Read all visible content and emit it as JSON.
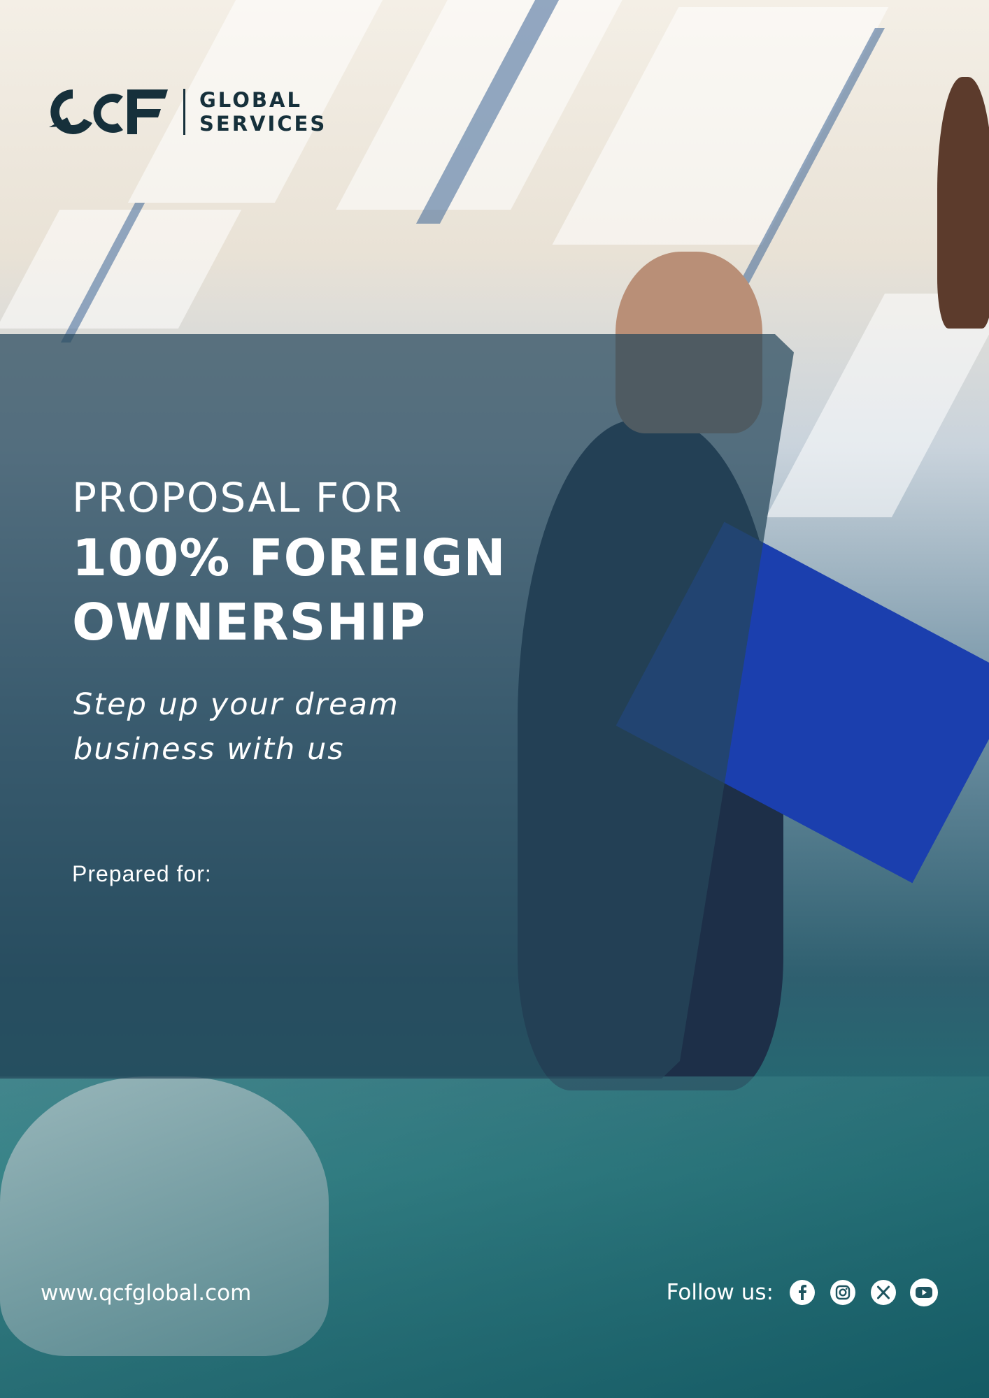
{
  "brand": {
    "logo_mark": "QCF",
    "line1": "GLOBAL",
    "line2": "SERVICES"
  },
  "hero": {
    "kicker": "PROPOSAL FOR",
    "headline_line1": "100% FOREIGN",
    "headline_line2": "OWNERSHIP",
    "tagline_line1": "Step up your dream",
    "tagline_line2": "business with us",
    "prepared_for": "Prepared for:"
  },
  "footer": {
    "website": "www.qcfglobal.com",
    "follow_label": "Follow us:",
    "social_icons": [
      "facebook-icon",
      "instagram-icon",
      "x-icon",
      "youtube-icon"
    ]
  },
  "colors": {
    "panel": "#26465a",
    "logo_dark": "#16303b",
    "text_light": "#ffffff"
  }
}
